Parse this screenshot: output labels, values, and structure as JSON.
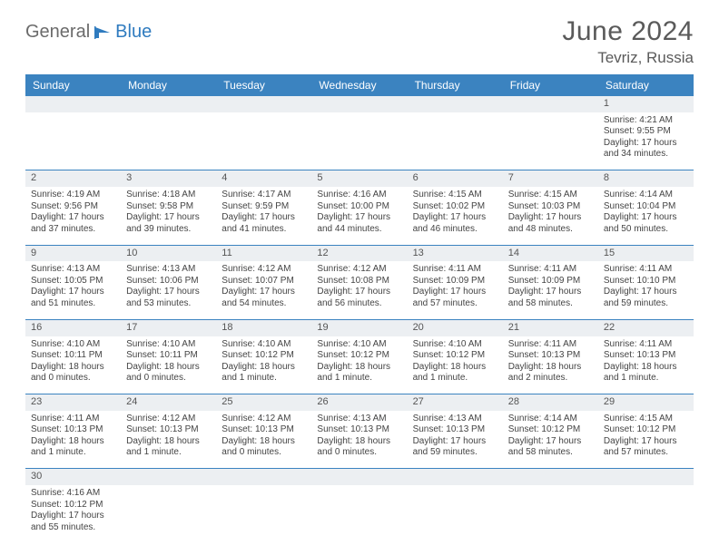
{
  "brand": {
    "part1": "General",
    "part2": "Blue"
  },
  "title": "June 2024",
  "location": "Tevriz, Russia",
  "colors": {
    "header_bg": "#3b83c0",
    "header_fg": "#ffffff",
    "daynum_bg": "#eceff2",
    "rule": "#3b83c0",
    "logo_gray": "#6b6b6b",
    "logo_blue": "#2f7bbf"
  },
  "day_headers": [
    "Sunday",
    "Monday",
    "Tuesday",
    "Wednesday",
    "Thursday",
    "Friday",
    "Saturday"
  ],
  "weeks": [
    {
      "nums": [
        "",
        "",
        "",
        "",
        "",
        "",
        "1"
      ],
      "cells": [
        null,
        null,
        null,
        null,
        null,
        null,
        {
          "sunrise": "Sunrise: 4:21 AM",
          "sunset": "Sunset: 9:55 PM",
          "day1": "Daylight: 17 hours",
          "day2": "and 34 minutes."
        }
      ]
    },
    {
      "nums": [
        "2",
        "3",
        "4",
        "5",
        "6",
        "7",
        "8"
      ],
      "cells": [
        {
          "sunrise": "Sunrise: 4:19 AM",
          "sunset": "Sunset: 9:56 PM",
          "day1": "Daylight: 17 hours",
          "day2": "and 37 minutes."
        },
        {
          "sunrise": "Sunrise: 4:18 AM",
          "sunset": "Sunset: 9:58 PM",
          "day1": "Daylight: 17 hours",
          "day2": "and 39 minutes."
        },
        {
          "sunrise": "Sunrise: 4:17 AM",
          "sunset": "Sunset: 9:59 PM",
          "day1": "Daylight: 17 hours",
          "day2": "and 41 minutes."
        },
        {
          "sunrise": "Sunrise: 4:16 AM",
          "sunset": "Sunset: 10:00 PM",
          "day1": "Daylight: 17 hours",
          "day2": "and 44 minutes."
        },
        {
          "sunrise": "Sunrise: 4:15 AM",
          "sunset": "Sunset: 10:02 PM",
          "day1": "Daylight: 17 hours",
          "day2": "and 46 minutes."
        },
        {
          "sunrise": "Sunrise: 4:15 AM",
          "sunset": "Sunset: 10:03 PM",
          "day1": "Daylight: 17 hours",
          "day2": "and 48 minutes."
        },
        {
          "sunrise": "Sunrise: 4:14 AM",
          "sunset": "Sunset: 10:04 PM",
          "day1": "Daylight: 17 hours",
          "day2": "and 50 minutes."
        }
      ]
    },
    {
      "nums": [
        "9",
        "10",
        "11",
        "12",
        "13",
        "14",
        "15"
      ],
      "cells": [
        {
          "sunrise": "Sunrise: 4:13 AM",
          "sunset": "Sunset: 10:05 PM",
          "day1": "Daylight: 17 hours",
          "day2": "and 51 minutes."
        },
        {
          "sunrise": "Sunrise: 4:13 AM",
          "sunset": "Sunset: 10:06 PM",
          "day1": "Daylight: 17 hours",
          "day2": "and 53 minutes."
        },
        {
          "sunrise": "Sunrise: 4:12 AM",
          "sunset": "Sunset: 10:07 PM",
          "day1": "Daylight: 17 hours",
          "day2": "and 54 minutes."
        },
        {
          "sunrise": "Sunrise: 4:12 AM",
          "sunset": "Sunset: 10:08 PM",
          "day1": "Daylight: 17 hours",
          "day2": "and 56 minutes."
        },
        {
          "sunrise": "Sunrise: 4:11 AM",
          "sunset": "Sunset: 10:09 PM",
          "day1": "Daylight: 17 hours",
          "day2": "and 57 minutes."
        },
        {
          "sunrise": "Sunrise: 4:11 AM",
          "sunset": "Sunset: 10:09 PM",
          "day1": "Daylight: 17 hours",
          "day2": "and 58 minutes."
        },
        {
          "sunrise": "Sunrise: 4:11 AM",
          "sunset": "Sunset: 10:10 PM",
          "day1": "Daylight: 17 hours",
          "day2": "and 59 minutes."
        }
      ]
    },
    {
      "nums": [
        "16",
        "17",
        "18",
        "19",
        "20",
        "21",
        "22"
      ],
      "cells": [
        {
          "sunrise": "Sunrise: 4:10 AM",
          "sunset": "Sunset: 10:11 PM",
          "day1": "Daylight: 18 hours",
          "day2": "and 0 minutes."
        },
        {
          "sunrise": "Sunrise: 4:10 AM",
          "sunset": "Sunset: 10:11 PM",
          "day1": "Daylight: 18 hours",
          "day2": "and 0 minutes."
        },
        {
          "sunrise": "Sunrise: 4:10 AM",
          "sunset": "Sunset: 10:12 PM",
          "day1": "Daylight: 18 hours",
          "day2": "and 1 minute."
        },
        {
          "sunrise": "Sunrise: 4:10 AM",
          "sunset": "Sunset: 10:12 PM",
          "day1": "Daylight: 18 hours",
          "day2": "and 1 minute."
        },
        {
          "sunrise": "Sunrise: 4:10 AM",
          "sunset": "Sunset: 10:12 PM",
          "day1": "Daylight: 18 hours",
          "day2": "and 1 minute."
        },
        {
          "sunrise": "Sunrise: 4:11 AM",
          "sunset": "Sunset: 10:13 PM",
          "day1": "Daylight: 18 hours",
          "day2": "and 2 minutes."
        },
        {
          "sunrise": "Sunrise: 4:11 AM",
          "sunset": "Sunset: 10:13 PM",
          "day1": "Daylight: 18 hours",
          "day2": "and 1 minute."
        }
      ]
    },
    {
      "nums": [
        "23",
        "24",
        "25",
        "26",
        "27",
        "28",
        "29"
      ],
      "cells": [
        {
          "sunrise": "Sunrise: 4:11 AM",
          "sunset": "Sunset: 10:13 PM",
          "day1": "Daylight: 18 hours",
          "day2": "and 1 minute."
        },
        {
          "sunrise": "Sunrise: 4:12 AM",
          "sunset": "Sunset: 10:13 PM",
          "day1": "Daylight: 18 hours",
          "day2": "and 1 minute."
        },
        {
          "sunrise": "Sunrise: 4:12 AM",
          "sunset": "Sunset: 10:13 PM",
          "day1": "Daylight: 18 hours",
          "day2": "and 0 minutes."
        },
        {
          "sunrise": "Sunrise: 4:13 AM",
          "sunset": "Sunset: 10:13 PM",
          "day1": "Daylight: 18 hours",
          "day2": "and 0 minutes."
        },
        {
          "sunrise": "Sunrise: 4:13 AM",
          "sunset": "Sunset: 10:13 PM",
          "day1": "Daylight: 17 hours",
          "day2": "and 59 minutes."
        },
        {
          "sunrise": "Sunrise: 4:14 AM",
          "sunset": "Sunset: 10:12 PM",
          "day1": "Daylight: 17 hours",
          "day2": "and 58 minutes."
        },
        {
          "sunrise": "Sunrise: 4:15 AM",
          "sunset": "Sunset: 10:12 PM",
          "day1": "Daylight: 17 hours",
          "day2": "and 57 minutes."
        }
      ]
    },
    {
      "nums": [
        "30",
        "",
        "",
        "",
        "",
        "",
        ""
      ],
      "cells": [
        {
          "sunrise": "Sunrise: 4:16 AM",
          "sunset": "Sunset: 10:12 PM",
          "day1": "Daylight: 17 hours",
          "day2": "and 55 minutes."
        },
        null,
        null,
        null,
        null,
        null,
        null
      ]
    }
  ]
}
